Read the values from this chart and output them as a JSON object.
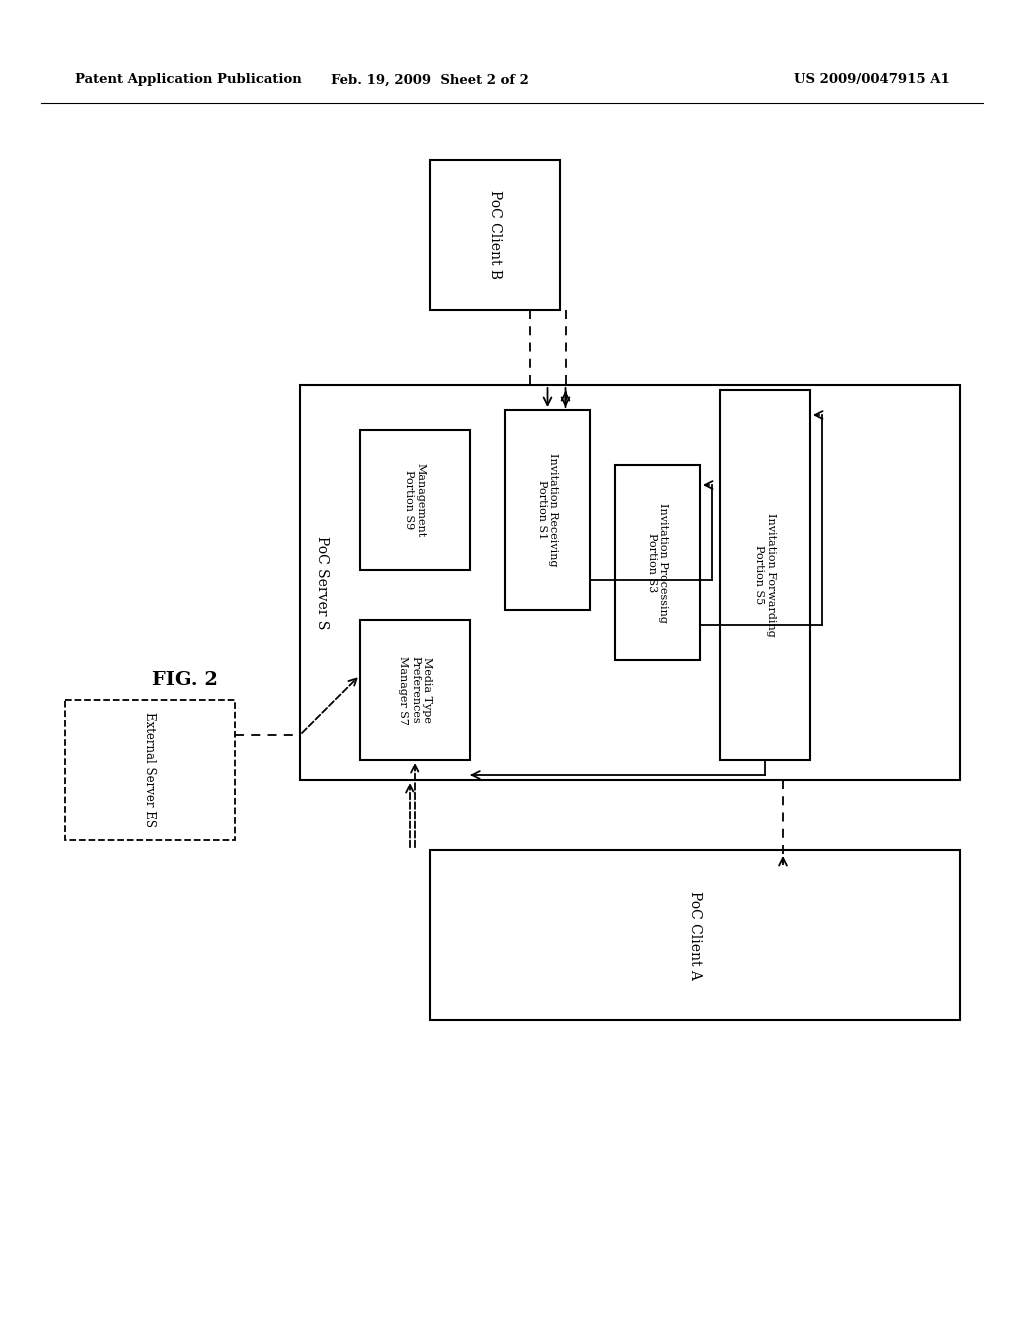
{
  "header_left": "Patent Application Publication",
  "header_center": "Feb. 19, 2009  Sheet 2 of 2",
  "header_right": "US 2009/0047915 A1",
  "fig_label": "FIG. 2",
  "background_color": "#ffffff",
  "poc_b": [
    430,
    160,
    560,
    310
  ],
  "srv": [
    300,
    385,
    960,
    780
  ],
  "mgmt": [
    360,
    430,
    470,
    570
  ],
  "inv_r": [
    505,
    410,
    590,
    610
  ],
  "inv_p": [
    615,
    465,
    700,
    660
  ],
  "inv_f": [
    720,
    390,
    810,
    760
  ],
  "med": [
    360,
    620,
    470,
    760
  ],
  "poc_a": [
    430,
    850,
    960,
    1020
  ],
  "ext": [
    65,
    700,
    235,
    840
  ]
}
